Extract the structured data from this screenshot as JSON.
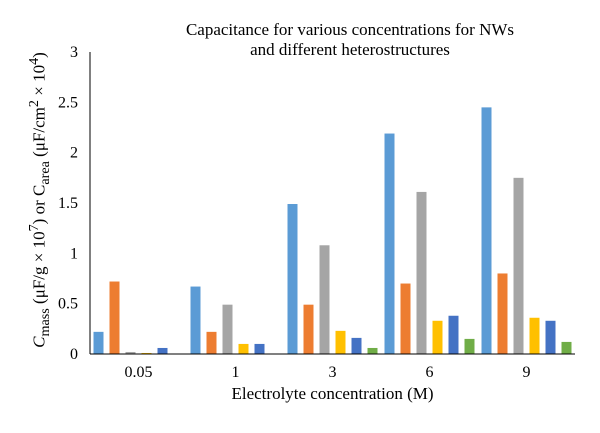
{
  "chart_data": {
    "type": "bar",
    "title_lines": [
      "Capacitance for various concentrations for NWs",
      "and different heterostructures"
    ],
    "xlabel": "Electrolyte concentration (M)",
    "ylabel": {
      "prefix": "C",
      "sub1": "mass",
      "mid1": " (μF/g × 10",
      "sup1": "7",
      "mid2": ") or C",
      "sub2": "area",
      "mid3": " (μF/cm",
      "sup2": "2",
      "mid4": " × 10",
      "sup3": "4",
      "suffix": ")"
    },
    "categories": [
      "0.05",
      "1",
      "3",
      "6",
      "9"
    ],
    "ylim": [
      0,
      3
    ],
    "yticks": [
      "0",
      "0.5",
      "1",
      "1.5",
      "2",
      "2.5",
      "3"
    ],
    "ytick_values": [
      0,
      0.5,
      1,
      1.5,
      2,
      2.5,
      3
    ],
    "grid": false,
    "legend": "none",
    "series": [
      {
        "color": "#5b9bd5",
        "values": [
          0.22,
          0.67,
          1.49,
          2.19,
          2.45
        ]
      },
      {
        "color": "#ed7d31",
        "values": [
          0.72,
          0.22,
          0.49,
          0.7,
          0.8
        ]
      },
      {
        "color": "#a5a5a5",
        "values": [
          0.02,
          0.49,
          1.08,
          1.61,
          1.75
        ]
      },
      {
        "color": "#ffc000",
        "values": [
          0.01,
          0.1,
          0.23,
          0.33,
          0.36
        ]
      },
      {
        "color": "#4472c4",
        "values": [
          0.06,
          0.1,
          0.16,
          0.38,
          0.33
        ]
      },
      {
        "color": "#70ad47",
        "values": [
          0.0,
          0.0,
          0.06,
          0.15,
          0.12
        ]
      }
    ]
  }
}
